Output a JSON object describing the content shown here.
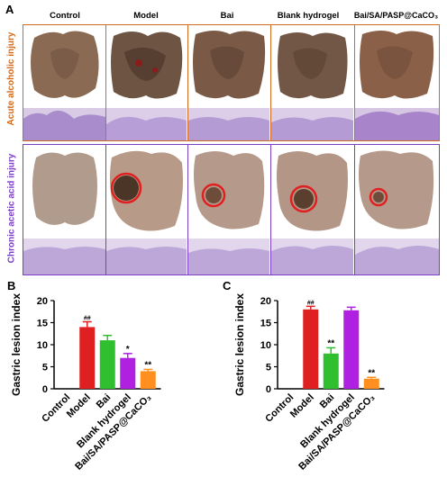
{
  "figure": {
    "panel_a": "A",
    "panel_b": "B",
    "panel_c": "C",
    "columns": [
      "Control",
      "Model",
      "Bai",
      "Blank hydrogel",
      "Bai/SA/PASP@CaCO₃"
    ],
    "row_labels": [
      "Acute alcoholic injury",
      "Chronic acetic acid injury"
    ],
    "colors": {
      "acute_border": "#cf6a1f",
      "acid_border": "#7a3fc2",
      "circle": "#e02020",
      "tissue": "#9a7a62",
      "histo": "#c8b6dc"
    }
  },
  "chart_data": [
    {
      "type": "bar",
      "panel": "B",
      "categories": [
        "Control",
        "Model",
        "Bai",
        "Blank hydrogel",
        "Bai/SA/PASP@CaCO₃"
      ],
      "values": [
        0,
        14,
        11,
        7,
        4
      ],
      "errors": [
        0,
        1.2,
        1.1,
        1.0,
        0.4
      ],
      "significance": [
        "",
        "##",
        "",
        "*",
        "**"
      ],
      "colors": [
        "#e02020",
        "#e02020",
        "#2fbf2f",
        "#b020e0",
        "#ff9020"
      ],
      "ylabel": "Gastric lesion index",
      "ylim": [
        0,
        20
      ],
      "yticks": [
        "0",
        "5",
        "10",
        "15",
        "20"
      ]
    },
    {
      "type": "bar",
      "panel": "C",
      "categories": [
        "Control",
        "Model",
        "Bai",
        "Blank hydrogel",
        "Bai/SA/PASP@CaCO₃"
      ],
      "values": [
        0,
        18,
        8,
        17.8,
        2.3
      ],
      "errors": [
        0,
        0.7,
        1.3,
        0.7,
        0.3
      ],
      "significance": [
        "",
        "##",
        "**",
        "",
        "**"
      ],
      "colors": [
        "#e02020",
        "#e02020",
        "#2fbf2f",
        "#b020e0",
        "#ff9020"
      ],
      "ylabel": "Gastric lesion index",
      "ylim": [
        0,
        20
      ],
      "yticks": [
        "0",
        "5",
        "10",
        "15",
        "20"
      ]
    }
  ]
}
